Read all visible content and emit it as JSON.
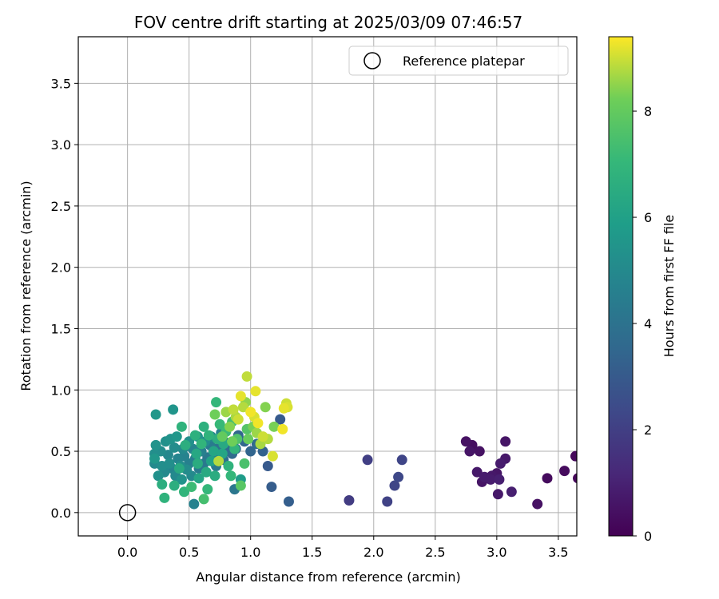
{
  "chart_data": {
    "type": "scatter",
    "title": "FOV centre drift starting at 2025/03/09 07:46:57",
    "xlabel": "Angular distance from reference (arcmin)",
    "ylabel": "Rotation from reference (arcmin)",
    "xlim": [
      -0.4,
      3.65
    ],
    "ylim": [
      -0.19,
      3.88
    ],
    "xticks": [
      0.0,
      0.5,
      1.0,
      1.5,
      2.0,
      2.5,
      3.0,
      3.5
    ],
    "xtick_labels": [
      "0.0",
      "0.5",
      "1.0",
      "1.5",
      "2.0",
      "2.5",
      "3.0",
      "3.5"
    ],
    "yticks": [
      0.0,
      0.5,
      1.0,
      1.5,
      2.0,
      2.5,
      3.0,
      3.5
    ],
    "ytick_labels": [
      "0.0",
      "0.5",
      "1.0",
      "1.5",
      "2.0",
      "2.5",
      "3.0",
      "3.5"
    ],
    "grid": true,
    "legend": {
      "position": "top-right",
      "entries": [
        "Reference platepar"
      ]
    },
    "colorbar": {
      "label": "Hours from first FF file",
      "range": [
        0,
        9.4
      ],
      "ticks": [
        0,
        2,
        4,
        6,
        8
      ],
      "tick_labels": [
        "0",
        "2",
        "4",
        "6",
        "8"
      ],
      "colormap": "viridis"
    },
    "reference_point": {
      "x": 0.0,
      "y": 0.0
    },
    "points": [
      {
        "x": 2.75,
        "y": 0.58,
        "h": 0.5
      },
      {
        "x": 2.8,
        "y": 0.55,
        "h": 0.4
      },
      {
        "x": 2.78,
        "y": 0.5,
        "h": 0.6
      },
      {
        "x": 2.86,
        "y": 0.5,
        "h": 0.5
      },
      {
        "x": 2.84,
        "y": 0.33,
        "h": 0.7
      },
      {
        "x": 2.9,
        "y": 0.29,
        "h": 0.8
      },
      {
        "x": 2.88,
        "y": 0.25,
        "h": 0.6
      },
      {
        "x": 2.96,
        "y": 0.3,
        "h": 0.7
      },
      {
        "x": 2.95,
        "y": 0.27,
        "h": 0.8
      },
      {
        "x": 3.0,
        "y": 0.32,
        "h": 0.6
      },
      {
        "x": 3.02,
        "y": 0.27,
        "h": 0.9
      },
      {
        "x": 3.01,
        "y": 0.15,
        "h": 0.7
      },
      {
        "x": 3.03,
        "y": 0.4,
        "h": 0.8
      },
      {
        "x": 3.07,
        "y": 0.58,
        "h": 0.6
      },
      {
        "x": 3.07,
        "y": 0.44,
        "h": 0.7
      },
      {
        "x": 3.12,
        "y": 0.17,
        "h": 0.9
      },
      {
        "x": 3.33,
        "y": 0.07,
        "h": 0.5
      },
      {
        "x": 3.41,
        "y": 0.28,
        "h": 0.3
      },
      {
        "x": 3.55,
        "y": 0.34,
        "h": 0.3
      },
      {
        "x": 3.64,
        "y": 0.46,
        "h": 0.2
      },
      {
        "x": 3.66,
        "y": 0.28,
        "h": 0.2
      },
      {
        "x": 1.8,
        "y": 0.1,
        "h": 1.9
      },
      {
        "x": 1.95,
        "y": 0.43,
        "h": 2.0
      },
      {
        "x": 2.11,
        "y": 0.09,
        "h": 2.1
      },
      {
        "x": 2.17,
        "y": 0.22,
        "h": 2.2
      },
      {
        "x": 2.2,
        "y": 0.29,
        "h": 2.3
      },
      {
        "x": 2.23,
        "y": 0.43,
        "h": 2.2
      },
      {
        "x": 1.31,
        "y": 0.09,
        "h": 3.2
      },
      {
        "x": 1.17,
        "y": 0.21,
        "h": 3.1
      },
      {
        "x": 1.14,
        "y": 0.38,
        "h": 3.0
      },
      {
        "x": 1.24,
        "y": 0.76,
        "h": 3.0
      },
      {
        "x": 1.1,
        "y": 0.5,
        "h": 3.3
      },
      {
        "x": 1.05,
        "y": 0.56,
        "h": 3.6
      },
      {
        "x": 1.0,
        "y": 0.5,
        "h": 3.4
      },
      {
        "x": 0.95,
        "y": 0.58,
        "h": 3.5
      },
      {
        "x": 0.88,
        "y": 0.52,
        "h": 3.8
      },
      {
        "x": 0.85,
        "y": 0.48,
        "h": 3.6
      },
      {
        "x": 0.9,
        "y": 0.63,
        "h": 3.5
      },
      {
        "x": 0.87,
        "y": 0.19,
        "h": 4.2
      },
      {
        "x": 0.54,
        "y": 0.07,
        "h": 4.7
      },
      {
        "x": 0.92,
        "y": 0.27,
        "h": 5.8
      },
      {
        "x": 0.23,
        "y": 0.8,
        "h": 5.6
      },
      {
        "x": 0.37,
        "y": 0.84,
        "h": 5.5
      },
      {
        "x": 0.23,
        "y": 0.55,
        "h": 5.4
      },
      {
        "x": 0.22,
        "y": 0.48,
        "h": 5.2
      },
      {
        "x": 0.22,
        "y": 0.44,
        "h": 5.6
      },
      {
        "x": 0.22,
        "y": 0.4,
        "h": 5.0
      },
      {
        "x": 0.25,
        "y": 0.3,
        "h": 5.3
      },
      {
        "x": 0.27,
        "y": 0.5,
        "h": 5.1
      },
      {
        "x": 0.28,
        "y": 0.38,
        "h": 5.2
      },
      {
        "x": 0.3,
        "y": 0.33,
        "h": 5.0
      },
      {
        "x": 0.31,
        "y": 0.58,
        "h": 5.3
      },
      {
        "x": 0.33,
        "y": 0.47,
        "h": 4.9
      },
      {
        "x": 0.34,
        "y": 0.4,
        "h": 5.2
      },
      {
        "x": 0.35,
        "y": 0.6,
        "h": 5.4
      },
      {
        "x": 0.36,
        "y": 0.36,
        "h": 4.8
      },
      {
        "x": 0.38,
        "y": 0.53,
        "h": 5.1
      },
      {
        "x": 0.39,
        "y": 0.3,
        "h": 5.0
      },
      {
        "x": 0.4,
        "y": 0.62,
        "h": 5.6
      },
      {
        "x": 0.41,
        "y": 0.44,
        "h": 4.8
      },
      {
        "x": 0.43,
        "y": 0.38,
        "h": 5.2
      },
      {
        "x": 0.44,
        "y": 0.27,
        "h": 5.4
      },
      {
        "x": 0.45,
        "y": 0.52,
        "h": 5.0
      },
      {
        "x": 0.46,
        "y": 0.46,
        "h": 4.7
      },
      {
        "x": 0.48,
        "y": 0.35,
        "h": 5.1
      },
      {
        "x": 0.5,
        "y": 0.58,
        "h": 5.3
      },
      {
        "x": 0.5,
        "y": 0.4,
        "h": 4.6
      },
      {
        "x": 0.52,
        "y": 0.3,
        "h": 5.0
      },
      {
        "x": 0.53,
        "y": 0.52,
        "h": 4.8
      },
      {
        "x": 0.55,
        "y": 0.44,
        "h": 4.5
      },
      {
        "x": 0.57,
        "y": 0.62,
        "h": 5.4
      },
      {
        "x": 0.58,
        "y": 0.36,
        "h": 4.4
      },
      {
        "x": 0.6,
        "y": 0.5,
        "h": 4.6
      },
      {
        "x": 0.62,
        "y": 0.4,
        "h": 4.3
      },
      {
        "x": 0.63,
        "y": 0.58,
        "h": 5.2
      },
      {
        "x": 0.65,
        "y": 0.45,
        "h": 4.2
      },
      {
        "x": 0.67,
        "y": 0.55,
        "h": 4.4
      },
      {
        "x": 0.68,
        "y": 0.62,
        "h": 4.9
      },
      {
        "x": 0.7,
        "y": 0.47,
        "h": 4.1
      },
      {
        "x": 0.72,
        "y": 0.38,
        "h": 4.3
      },
      {
        "x": 0.74,
        "y": 0.53,
        "h": 4.0
      },
      {
        "x": 0.76,
        "y": 0.65,
        "h": 4.6
      },
      {
        "x": 0.78,
        "y": 0.43,
        "h": 3.9
      },
      {
        "x": 0.8,
        "y": 0.57,
        "h": 4.0
      },
      {
        "x": 0.82,
        "y": 0.5,
        "h": 3.8
      },
      {
        "x": 0.28,
        "y": 0.23,
        "h": 6.6
      },
      {
        "x": 0.3,
        "y": 0.12,
        "h": 6.8
      },
      {
        "x": 0.38,
        "y": 0.22,
        "h": 6.6
      },
      {
        "x": 0.42,
        "y": 0.36,
        "h": 6.4
      },
      {
        "x": 0.44,
        "y": 0.7,
        "h": 6.8
      },
      {
        "x": 0.46,
        "y": 0.17,
        "h": 6.9
      },
      {
        "x": 0.47,
        "y": 0.55,
        "h": 6.6
      },
      {
        "x": 0.52,
        "y": 0.21,
        "h": 7.2
      },
      {
        "x": 0.55,
        "y": 0.63,
        "h": 6.7
      },
      {
        "x": 0.56,
        "y": 0.48,
        "h": 6.3
      },
      {
        "x": 0.57,
        "y": 0.4,
        "h": 6.5
      },
      {
        "x": 0.58,
        "y": 0.28,
        "h": 6.2
      },
      {
        "x": 0.6,
        "y": 0.56,
        "h": 6.9
      },
      {
        "x": 0.62,
        "y": 0.7,
        "h": 6.7
      },
      {
        "x": 0.62,
        "y": 0.11,
        "h": 7.4
      },
      {
        "x": 0.64,
        "y": 0.33,
        "h": 6.4
      },
      {
        "x": 0.65,
        "y": 0.19,
        "h": 7.0
      },
      {
        "x": 0.66,
        "y": 0.63,
        "h": 6.8
      },
      {
        "x": 0.68,
        "y": 0.42,
        "h": 6.0
      },
      {
        "x": 0.7,
        "y": 0.5,
        "h": 6.2
      },
      {
        "x": 0.71,
        "y": 0.3,
        "h": 6.5
      },
      {
        "x": 0.72,
        "y": 0.9,
        "h": 7.0
      },
      {
        "x": 0.73,
        "y": 0.6,
        "h": 6.6
      },
      {
        "x": 0.75,
        "y": 0.72,
        "h": 7.1
      },
      {
        "x": 0.77,
        "y": 0.48,
        "h": 6.2
      },
      {
        "x": 0.78,
        "y": 0.56,
        "h": 6.4
      },
      {
        "x": 0.8,
        "y": 0.66,
        "h": 7.2
      },
      {
        "x": 0.82,
        "y": 0.38,
        "h": 6.8
      },
      {
        "x": 0.84,
        "y": 0.3,
        "h": 7.0
      },
      {
        "x": 0.85,
        "y": 0.74,
        "h": 7.4
      },
      {
        "x": 0.87,
        "y": 0.52,
        "h": 6.9
      },
      {
        "x": 0.89,
        "y": 0.6,
        "h": 7.6
      },
      {
        "x": 0.92,
        "y": 0.22,
        "h": 7.8
      },
      {
        "x": 0.95,
        "y": 0.4,
        "h": 7.5
      },
      {
        "x": 0.97,
        "y": 0.68,
        "h": 7.7
      },
      {
        "x": 0.71,
        "y": 0.8,
        "h": 8.2
      },
      {
        "x": 0.74,
        "y": 0.42,
        "h": 8.8
      },
      {
        "x": 0.77,
        "y": 0.62,
        "h": 8.0
      },
      {
        "x": 0.8,
        "y": 0.82,
        "h": 8.6
      },
      {
        "x": 0.83,
        "y": 0.7,
        "h": 8.4
      },
      {
        "x": 0.85,
        "y": 0.58,
        "h": 8.2
      },
      {
        "x": 0.86,
        "y": 0.84,
        "h": 8.9
      },
      {
        "x": 0.88,
        "y": 0.78,
        "h": 8.7
      },
      {
        "x": 0.9,
        "y": 0.76,
        "h": 9.0
      },
      {
        "x": 0.92,
        "y": 0.95,
        "h": 9.2
      },
      {
        "x": 0.94,
        "y": 0.86,
        "h": 8.8
      },
      {
        "x": 0.96,
        "y": 0.9,
        "h": 8.5
      },
      {
        "x": 0.97,
        "y": 1.11,
        "h": 8.9
      },
      {
        "x": 0.98,
        "y": 0.6,
        "h": 8.1
      },
      {
        "x": 1.0,
        "y": 0.82,
        "h": 9.3
      },
      {
        "x": 1.02,
        "y": 0.7,
        "h": 8.3
      },
      {
        "x": 1.03,
        "y": 0.78,
        "h": 9.1
      },
      {
        "x": 1.04,
        "y": 0.99,
        "h": 9.2
      },
      {
        "x": 1.05,
        "y": 0.65,
        "h": 8.6
      },
      {
        "x": 1.06,
        "y": 0.73,
        "h": 9.3
      },
      {
        "x": 1.08,
        "y": 0.56,
        "h": 8.7
      },
      {
        "x": 1.1,
        "y": 0.62,
        "h": 9.0
      },
      {
        "x": 1.12,
        "y": 0.86,
        "h": 8.4
      },
      {
        "x": 1.14,
        "y": 0.6,
        "h": 8.8
      },
      {
        "x": 1.18,
        "y": 0.46,
        "h": 9.1
      },
      {
        "x": 1.19,
        "y": 0.7,
        "h": 8.3
      },
      {
        "x": 1.26,
        "y": 0.68,
        "h": 9.3
      },
      {
        "x": 1.27,
        "y": 0.85,
        "h": 9.2
      },
      {
        "x": 1.29,
        "y": 0.89,
        "h": 9.0
      },
      {
        "x": 1.3,
        "y": 0.86,
        "h": 9.1
      }
    ]
  }
}
